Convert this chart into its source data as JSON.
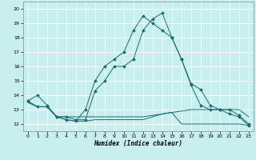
{
  "xlabel": "Humidex (Indice chaleur)",
  "background_color": "#c8eeee",
  "line_color": "#1a6b6b",
  "grid_color": "#ffffff",
  "xlim": [
    -0.5,
    23.5
  ],
  "ylim": [
    11.5,
    20.5
  ],
  "yticks": [
    12,
    13,
    14,
    15,
    16,
    17,
    18,
    19,
    20
  ],
  "xticks": [
    0,
    1,
    2,
    3,
    4,
    5,
    6,
    7,
    8,
    9,
    10,
    11,
    12,
    13,
    14,
    15,
    16,
    17,
    18,
    19,
    20,
    21,
    22,
    23
  ],
  "lines": [
    {
      "x": [
        0,
        1,
        2,
        3,
        4,
        5,
        6,
        7,
        8,
        9,
        10,
        11,
        12,
        13,
        14,
        15,
        16,
        17,
        18,
        19,
        20,
        21,
        22,
        23
      ],
      "y": [
        13.6,
        14.0,
        13.3,
        12.5,
        12.5,
        12.3,
        12.3,
        14.3,
        15.0,
        16.0,
        16.0,
        16.5,
        18.5,
        19.3,
        19.7,
        18.0,
        16.5,
        14.8,
        14.4,
        13.3,
        13.0,
        12.7,
        12.5,
        11.9
      ],
      "marker": true,
      "markersize": 2.0
    },
    {
      "x": [
        0,
        1,
        2,
        3,
        4,
        5,
        6,
        7,
        8,
        9,
        10,
        11,
        12,
        13,
        14,
        15,
        16,
        17,
        18,
        19,
        20,
        21,
        22,
        23
      ],
      "y": [
        13.6,
        13.2,
        13.2,
        12.5,
        12.3,
        12.2,
        13.0,
        15.0,
        16.0,
        16.5,
        17.0,
        18.5,
        19.5,
        19.0,
        18.5,
        18.0,
        16.5,
        14.7,
        13.3,
        13.0,
        13.0,
        13.0,
        12.6,
        12.0
      ],
      "marker": true,
      "markersize": 2.0
    },
    {
      "x": [
        0,
        1,
        2,
        3,
        4,
        5,
        6,
        7,
        8,
        9,
        10,
        11,
        12,
        13,
        14,
        15,
        16,
        17,
        18,
        19,
        20,
        21,
        22,
        23
      ],
      "y": [
        13.5,
        13.2,
        13.2,
        12.5,
        12.5,
        12.5,
        12.5,
        12.5,
        12.5,
        12.5,
        12.5,
        12.5,
        12.5,
        12.6,
        12.7,
        12.8,
        12.9,
        13.0,
        13.0,
        13.0,
        13.0,
        13.0,
        13.0,
        12.5
      ],
      "marker": false,
      "markersize": 0
    },
    {
      "x": [
        0,
        1,
        2,
        3,
        4,
        5,
        6,
        7,
        8,
        9,
        10,
        11,
        12,
        13,
        14,
        15,
        16,
        17,
        18,
        19,
        20,
        21,
        22,
        23
      ],
      "y": [
        13.5,
        13.2,
        13.2,
        12.5,
        12.3,
        12.2,
        12.2,
        12.3,
        12.3,
        12.3,
        12.3,
        12.3,
        12.3,
        12.5,
        12.7,
        12.8,
        12.0,
        12.0,
        12.0,
        12.0,
        12.0,
        12.0,
        12.0,
        11.9
      ],
      "marker": false,
      "markersize": 0
    }
  ]
}
